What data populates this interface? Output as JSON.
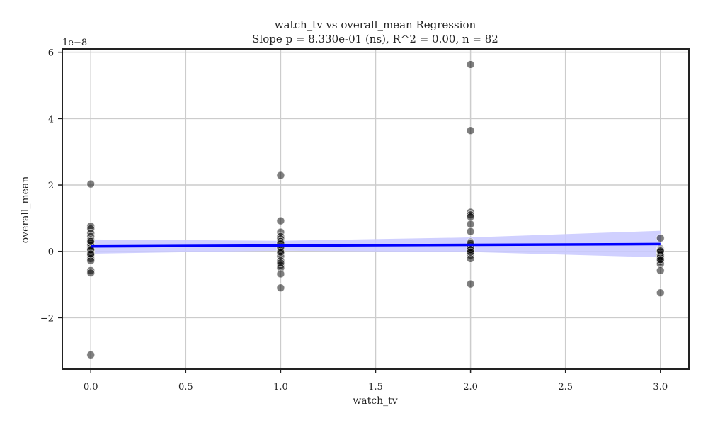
{
  "chart_data": {
    "type": "scatter",
    "title": "watch_tv vs overall_mean Regression",
    "subtitle": "Slope p = 8.330e-01 (ns), R^2 = 0.00, n = 82",
    "xlabel": "watch_tv",
    "ylabel": "overall_mean",
    "y_offset_label": "1e−8",
    "xlim": [
      -0.15,
      3.15
    ],
    "ylim": [
      -3.55,
      6.1
    ],
    "x_ticks": [
      0.0,
      0.5,
      1.0,
      1.5,
      2.0,
      2.5,
      3.0
    ],
    "x_tick_labels": [
      "0.0",
      "0.5",
      "1.0",
      "1.5",
      "2.0",
      "2.5",
      "3.0"
    ],
    "y_ticks": [
      -2,
      0,
      2,
      4,
      6
    ],
    "y_tick_labels": [
      "−2",
      "0",
      "2",
      "4",
      "6"
    ],
    "grid": true,
    "point_color": "#000000",
    "point_opacity": 0.5,
    "regression_color": "#0000ff",
    "ci_color": "#c8c8ff",
    "regression_line": {
      "x": [
        0,
        3
      ],
      "y": [
        0.15,
        0.22
      ]
    },
    "ci_band": {
      "x": [
        0,
        1,
        2,
        3
      ],
      "upper": [
        0.36,
        0.32,
        0.42,
        0.62
      ],
      "lower": [
        -0.07,
        0.02,
        -0.02,
        -0.18
      ]
    },
    "points": [
      [
        0,
        2.03
      ],
      [
        0,
        0.76
      ],
      [
        0,
        0.68
      ],
      [
        0,
        0.55
      ],
      [
        0,
        0.45
      ],
      [
        0,
        0.35
      ],
      [
        0,
        0.25
      ],
      [
        0,
        0.18
      ],
      [
        0,
        0.1
      ],
      [
        0,
        0.02
      ],
      [
        0,
        -0.05
      ],
      [
        0,
        -0.12
      ],
      [
        0,
        -0.22
      ],
      [
        0,
        -0.28
      ],
      [
        0,
        -0.58
      ],
      [
        0,
        -0.65
      ],
      [
        0,
        -3.12
      ],
      [
        0,
        0.3
      ],
      [
        0,
        0.05
      ],
      [
        0,
        -0.08
      ],
      [
        1,
        2.29
      ],
      [
        1,
        0.92
      ],
      [
        1,
        0.58
      ],
      [
        1,
        0.45
      ],
      [
        1,
        0.38
      ],
      [
        1,
        0.3
      ],
      [
        1,
        0.22
      ],
      [
        1,
        0.15
      ],
      [
        1,
        0.08
      ],
      [
        1,
        0.02
      ],
      [
        1,
        -0.05
      ],
      [
        1,
        -0.15
      ],
      [
        1,
        -0.28
      ],
      [
        1,
        -0.42
      ],
      [
        1,
        -0.5
      ],
      [
        1,
        -0.68
      ],
      [
        1,
        -1.1
      ],
      [
        1,
        0.12
      ],
      [
        1,
        -0.02
      ],
      [
        1,
        0.25
      ],
      [
        1,
        -0.35
      ],
      [
        2,
        5.63
      ],
      [
        2,
        3.64
      ],
      [
        2,
        1.18
      ],
      [
        2,
        1.1
      ],
      [
        2,
        1.04
      ],
      [
        2,
        0.82
      ],
      [
        2,
        0.6
      ],
      [
        2,
        0.28
      ],
      [
        2,
        0.22
      ],
      [
        2,
        0.15
      ],
      [
        2,
        0.08
      ],
      [
        2,
        0.02
      ],
      [
        2,
        -0.05
      ],
      [
        2,
        -0.12
      ],
      [
        2,
        -0.22
      ],
      [
        2,
        -0.98
      ],
      [
        2,
        0.18
      ],
      [
        2,
        0.12
      ],
      [
        2,
        0.05
      ],
      [
        2,
        -0.02
      ],
      [
        2,
        0.25
      ],
      [
        3,
        0.4
      ],
      [
        3,
        0.08
      ],
      [
        3,
        0.05
      ],
      [
        3,
        0.02
      ],
      [
        3,
        0.0
      ],
      [
        3,
        -0.05
      ],
      [
        3,
        -0.1
      ],
      [
        3,
        -0.15
      ],
      [
        3,
        -0.22
      ],
      [
        3,
        -0.3
      ],
      [
        3,
        -0.38
      ],
      [
        3,
        -0.58
      ],
      [
        3,
        -1.25
      ],
      [
        3,
        0.03
      ],
      [
        3,
        -0.02
      ],
      [
        3,
        -0.08
      ],
      [
        3,
        -0.12
      ],
      [
        3,
        -0.18
      ],
      [
        3,
        -0.25
      ],
      [
        3,
        0.01
      ]
    ]
  }
}
